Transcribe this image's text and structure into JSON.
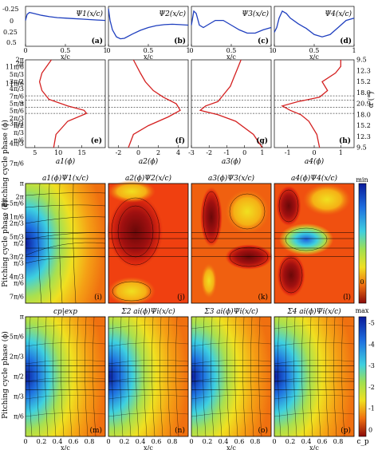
{
  "chart_data": {
    "type": "composite",
    "rows": {
      "modes": {
        "type": "line",
        "xlabel": "x/c",
        "x_ticks": [
          "0",
          "0.5",
          "1"
        ],
        "y_ticks": [
          "-0.25",
          "0",
          "0.25",
          "0.5"
        ],
        "ylim": [
          0.5,
          -0.35
        ],
        "color": "#1f3fbf",
        "panels": [
          {
            "title": "Ψ1(x/c)",
            "tag": "(a)",
            "x": [
              0,
              0.02,
              0.05,
              0.1,
              0.2,
              0.3,
              0.4,
              0.5,
              0.6,
              0.7,
              0.8,
              0.9,
              1.0
            ],
            "y": [
              -0.05,
              -0.18,
              -0.22,
              -0.2,
              -0.16,
              -0.13,
              -0.11,
              -0.1,
              -0.09,
              -0.08,
              -0.07,
              -0.06,
              -0.05
            ]
          },
          {
            "title": "Ψ2(x/c)",
            "tag": "(b)",
            "x": [
              0,
              0.02,
              0.05,
              0.1,
              0.15,
              0.2,
              0.3,
              0.4,
              0.5,
              0.6,
              0.7,
              0.8,
              0.9,
              1.0
            ],
            "y": [
              -0.3,
              -0.05,
              0.15,
              0.3,
              0.34,
              0.33,
              0.24,
              0.16,
              0.1,
              0.06,
              0.04,
              0.03,
              0.04,
              0.05
            ]
          },
          {
            "title": "Ψ3(x/c)",
            "tag": "(c)",
            "x": [
              0,
              0.03,
              0.06,
              0.1,
              0.15,
              0.2,
              0.3,
              0.4,
              0.5,
              0.6,
              0.7,
              0.8,
              0.9,
              1.0
            ],
            "y": [
              0.05,
              -0.25,
              -0.2,
              0.05,
              0.1,
              0.05,
              -0.05,
              -0.05,
              0.05,
              0.15,
              0.22,
              0.22,
              0.15,
              0.1
            ]
          },
          {
            "title": "Ψ4(x/c)",
            "tag": "(d)",
            "x": [
              0,
              0.03,
              0.06,
              0.1,
              0.15,
              0.2,
              0.3,
              0.4,
              0.5,
              0.6,
              0.7,
              0.8,
              0.9,
              1.0
            ],
            "y": [
              0.2,
              0.1,
              -0.1,
              -0.25,
              -0.2,
              -0.1,
              0.02,
              0.12,
              0.25,
              0.3,
              0.25,
              0.1,
              -0.05,
              -0.1
            ]
          }
        ]
      },
      "coefficients": {
        "type": "line",
        "ylabel": "Pitching cycle phase (ϕ)",
        "y_right_label": "α (°)",
        "phase_ticks": [
          "π/6",
          "π/3",
          "π/2",
          "2π/3",
          "5π/6",
          "π",
          "7π/6",
          "4π/3",
          "3π/2",
          "5π/3",
          "11π/6",
          "2π"
        ],
        "alpha_ticks": [
          "9.5",
          "12.3",
          "15.2",
          "18.0",
          "20.9",
          "18.0",
          "15.2",
          "12.3",
          "9.5"
        ],
        "phase_lines_over_pi": [
          0.78,
          0.92,
          1.08,
          1.18
        ],
        "color": "#d42020",
        "panels": [
          {
            "xlabel": "a1(ϕ)",
            "tag": "(e)",
            "x_ticks": [
              "5",
              "10",
              "15"
            ],
            "xlim": [
              3,
              20
            ],
            "phase_over_pi": [
              0,
              0.3,
              0.6,
              0.78,
              0.85,
              0.95,
              1.1,
              1.3,
              1.5,
              1.7,
              1.85,
              2.0
            ],
            "values": [
              9,
              9.5,
              12,
              16,
              15.5,
              12,
              8,
              6.5,
              6,
              6.5,
              7.5,
              8.5
            ]
          },
          {
            "xlabel": "a2(ϕ)",
            "tag": "(f)",
            "x_ticks": [
              "-2",
              "0",
              "2",
              "4"
            ],
            "xlim": [
              -3,
              5
            ],
            "phase_over_pi": [
              0,
              0.3,
              0.5,
              0.7,
              0.85,
              1.0,
              1.15,
              1.3,
              1.5,
              1.7,
              2.0
            ],
            "values": [
              -1,
              -0.5,
              1,
              3,
              4.2,
              3.8,
              2.5,
              1.5,
              0.7,
              0.2,
              -0.5
            ]
          },
          {
            "xlabel": "a3(ϕ)",
            "tag": "(g)",
            "x_ticks": [
              "-3",
              "-2",
              "-1",
              "0",
              "1"
            ],
            "xlim": [
              -3,
              1.5
            ],
            "phase_over_pi": [
              0,
              0.3,
              0.6,
              0.75,
              0.85,
              0.95,
              1.05,
              1.2,
              1.4,
              1.6,
              1.8,
              2.0
            ],
            "values": [
              1,
              0.5,
              -0.5,
              -1.5,
              -2.5,
              -2.2,
              -1.5,
              -1.2,
              -0.8,
              -0.6,
              -0.4,
              -0.2
            ]
          },
          {
            "xlabel": "a4(ϕ)",
            "tag": "(h)",
            "x_ticks": [
              "-1",
              "0",
              "1"
            ],
            "xlim": [
              -1.5,
              1.5
            ],
            "phase_over_pi": [
              0,
              0.3,
              0.6,
              0.75,
              0.85,
              0.95,
              1.05,
              1.15,
              1.3,
              1.5,
              1.7,
              1.85,
              2.0
            ],
            "values": [
              0.2,
              0.1,
              -0.2,
              -0.5,
              -0.9,
              -1.2,
              -0.6,
              0.2,
              0.5,
              0.3,
              0.8,
              1.0,
              1.0
            ]
          }
        ]
      },
      "mode_maps": {
        "type": "heatmap",
        "ylabel": "Pitching cycle phase (ϕ)",
        "xlim": [
          0,
          1
        ],
        "colorbar_labels": [
          "min",
          "0",
          "max"
        ],
        "panels": [
          {
            "title": "a1(ϕ)Ψ1(x/c)",
            "tag": "(i)"
          },
          {
            "title": "a2(ϕ)Ψ2(x/c)",
            "tag": "(j)"
          },
          {
            "title": "a3(ϕ)Ψ3(x/c)",
            "tag": "(k)"
          },
          {
            "title": "a4(ϕ)Ψ4(x/c)",
            "tag": "(l)"
          }
        ]
      },
      "reconstructions": {
        "type": "heatmap",
        "ylabel": "Pitching cycle phase (ϕ)",
        "xlabel": "x/c",
        "x_ticks": [
          "0",
          "0.2",
          "0.4",
          "0.6",
          "0.8"
        ],
        "colorbar_ticks": [
          "-5",
          "-4",
          "-3",
          "-2",
          "-1",
          "0"
        ],
        "colorbar_label": "c_p",
        "panels": [
          {
            "title": "cp|exp",
            "tag": "(m)"
          },
          {
            "title": "Σ2 ai(ϕ)Ψi(x/c)",
            "tag": "(n)"
          },
          {
            "title": "Σ3 ai(ϕ)Ψi(x/c)",
            "tag": "(o)"
          },
          {
            "title": "Σ4 ai(ϕ)Ψi(x/c)",
            "tag": "(p)"
          }
        ]
      }
    }
  }
}
